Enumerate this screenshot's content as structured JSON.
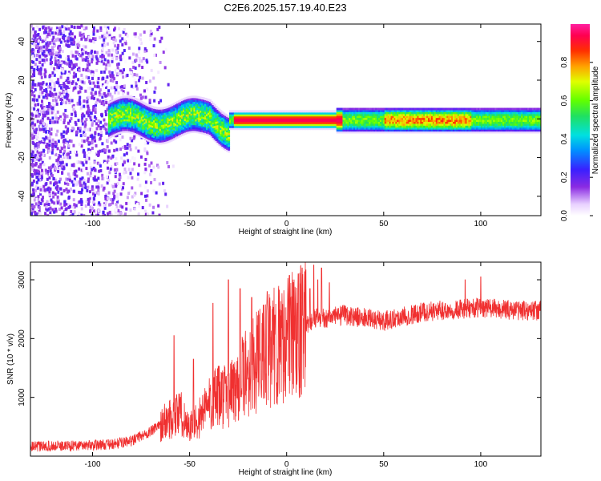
{
  "title": "C2E6.2025.157.19.40.E23",
  "colors": {
    "snr_line": "#f03030",
    "axes": "#000000",
    "background": "#ffffff"
  },
  "chart_data": [
    {
      "type": "heatmap",
      "title": "C2E6.2025.157.19.40.E23",
      "xlabel": "Height of straight line (km)",
      "ylabel": "Frequency (Hz)",
      "xlim": [
        -132,
        131
      ],
      "ylim": [
        -50,
        49
      ],
      "xticks": [
        -100,
        -50,
        0,
        50,
        100
      ],
      "xtick_labels": [
        "-100",
        "-50",
        "0",
        "50",
        "100"
      ],
      "yticks": [
        -40,
        -20,
        0,
        20,
        40
      ],
      "ytick_labels": [
        "-40",
        "-20",
        "0",
        "20",
        "40"
      ],
      "colorbar": {
        "label": "Normalized spectral amplitude",
        "range": [
          0,
          1
        ],
        "ticks": [
          0.0,
          0.2,
          0.4,
          0.6,
          0.8
        ],
        "tick_labels": [
          "0.0",
          "0.2",
          "0.4",
          "0.6",
          "0.8"
        ],
        "colormap": "rainbow (white-violet-blue-cyan-green-yellow-red-magenta)"
      },
      "features": {
        "noise_region_x": [
          -132,
          -70
        ],
        "band_start_x": -92,
        "band_center_hz": 0,
        "turbulent_segment_x": [
          -92,
          -30
        ],
        "strongest_segment_x": [
          -28,
          28
        ]
      }
    },
    {
      "type": "line",
      "xlabel": "Height of straight line (km)",
      "ylabel": "SNR (10 * v/v)",
      "xlim": [
        -132,
        131
      ],
      "ylim": [
        0,
        3300
      ],
      "xticks": [
        -100,
        -50,
        0,
        50,
        100
      ],
      "xtick_labels": [
        "-100",
        "-50",
        "0",
        "50",
        "100"
      ],
      "yticks": [
        1000,
        2000,
        3000
      ],
      "ytick_labels": [
        "1000",
        "2000",
        "3000"
      ],
      "envelope_x": [
        -132,
        -110,
        -90,
        -80,
        -70,
        -62,
        -55,
        -50,
        -45,
        -40,
        -35,
        -30,
        -25,
        -20,
        -15,
        -10,
        -5,
        0,
        5,
        10,
        15,
        20,
        30,
        40,
        50,
        60,
        70,
        80,
        90,
        100,
        110,
        120,
        131
      ],
      "envelope_y": [
        160,
        180,
        200,
        260,
        420,
        600,
        750,
        480,
        650,
        900,
        1000,
        1050,
        1250,
        1450,
        1600,
        1750,
        1900,
        2000,
        2150,
        2250,
        2350,
        2350,
        2400,
        2350,
        2300,
        2380,
        2450,
        2480,
        2500,
        2530,
        2500,
        2480,
        2480
      ],
      "spike_x": [
        -58,
        -48,
        -38,
        -30,
        -24,
        -18,
        -14,
        -10,
        -6,
        2,
        6,
        8,
        12,
        14,
        16,
        18,
        22,
        92,
        100
      ],
      "spike_y": [
        2050,
        1650,
        2600,
        3000,
        2850,
        2700,
        2400,
        2800,
        2400,
        2700,
        3100,
        3200,
        2850,
        3250,
        3000,
        3200,
        2950,
        3000,
        3050
      ]
    }
  ]
}
